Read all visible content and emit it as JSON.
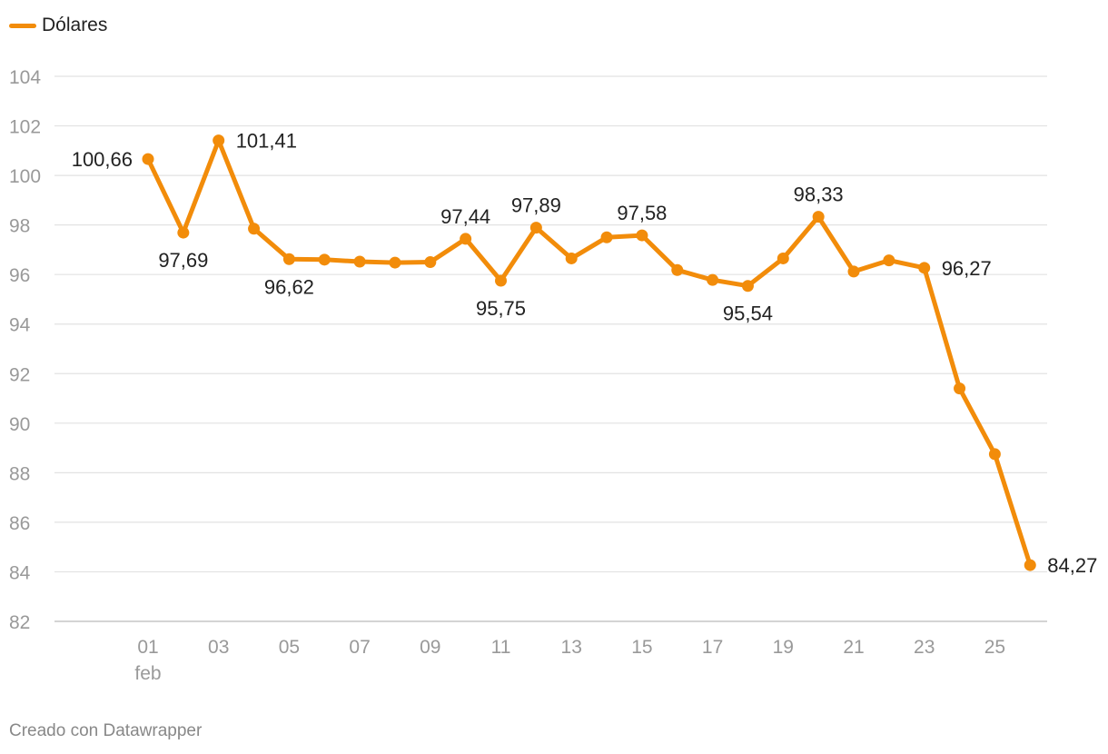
{
  "legend": {
    "label": "Dólares",
    "color": "#f28c0a"
  },
  "footer": "Creado con Datawrapper",
  "chart_data": {
    "type": "line",
    "title": "",
    "xlabel": "",
    "ylabel": "",
    "ylim": [
      82,
      104
    ],
    "yticks": [
      82,
      84,
      86,
      88,
      90,
      92,
      94,
      96,
      98,
      100,
      102,
      104
    ],
    "xticks": [
      {
        "day": 1,
        "label": "01",
        "sublabel": "feb"
      },
      {
        "day": 3,
        "label": "03"
      },
      {
        "day": 5,
        "label": "05"
      },
      {
        "day": 7,
        "label": "07"
      },
      {
        "day": 9,
        "label": "09"
      },
      {
        "day": 11,
        "label": "11"
      },
      {
        "day": 13,
        "label": "13"
      },
      {
        "day": 15,
        "label": "15"
      },
      {
        "day": 17,
        "label": "17"
      },
      {
        "day": 19,
        "label": "19"
      },
      {
        "day": 21,
        "label": "21"
      },
      {
        "day": 23,
        "label": "23"
      },
      {
        "day": 25,
        "label": "25"
      }
    ],
    "series": [
      {
        "name": "Dólares",
        "color": "#f28c0a",
        "points": [
          {
            "day": 1,
            "value": 100.66,
            "label": "100,66",
            "label_pos": "left"
          },
          {
            "day": 2,
            "value": 97.69,
            "label": "97,69",
            "label_pos": "below"
          },
          {
            "day": 3,
            "value": 101.41,
            "label": "101,41",
            "label_pos": "right"
          },
          {
            "day": 4,
            "value": 97.85
          },
          {
            "day": 5,
            "value": 96.62,
            "label": "96,62",
            "label_pos": "below"
          },
          {
            "day": 6,
            "value": 96.6
          },
          {
            "day": 7,
            "value": 96.52
          },
          {
            "day": 8,
            "value": 96.48
          },
          {
            "day": 9,
            "value": 96.5
          },
          {
            "day": 10,
            "value": 97.44,
            "label": "97,44",
            "label_pos": "above"
          },
          {
            "day": 11,
            "value": 95.75,
            "label": "95,75",
            "label_pos": "below"
          },
          {
            "day": 12,
            "value": 97.89,
            "label": "97,89",
            "label_pos": "above"
          },
          {
            "day": 13,
            "value": 96.65
          },
          {
            "day": 14,
            "value": 97.5
          },
          {
            "day": 15,
            "value": 97.58,
            "label": "97,58",
            "label_pos": "above"
          },
          {
            "day": 16,
            "value": 96.18
          },
          {
            "day": 17,
            "value": 95.78
          },
          {
            "day": 18,
            "value": 95.54,
            "label": "95,54",
            "label_pos": "below"
          },
          {
            "day": 19,
            "value": 96.65
          },
          {
            "day": 20,
            "value": 98.33,
            "label": "98,33",
            "label_pos": "above"
          },
          {
            "day": 21,
            "value": 96.12
          },
          {
            "day": 22,
            "value": 96.57
          },
          {
            "day": 23,
            "value": 96.27,
            "label": "96,27",
            "label_pos": "right"
          },
          {
            "day": 24,
            "value": 91.4
          },
          {
            "day": 25,
            "value": 88.75
          },
          {
            "day": 26,
            "value": 84.27,
            "label": "84,27",
            "label_pos": "right"
          }
        ]
      }
    ]
  }
}
